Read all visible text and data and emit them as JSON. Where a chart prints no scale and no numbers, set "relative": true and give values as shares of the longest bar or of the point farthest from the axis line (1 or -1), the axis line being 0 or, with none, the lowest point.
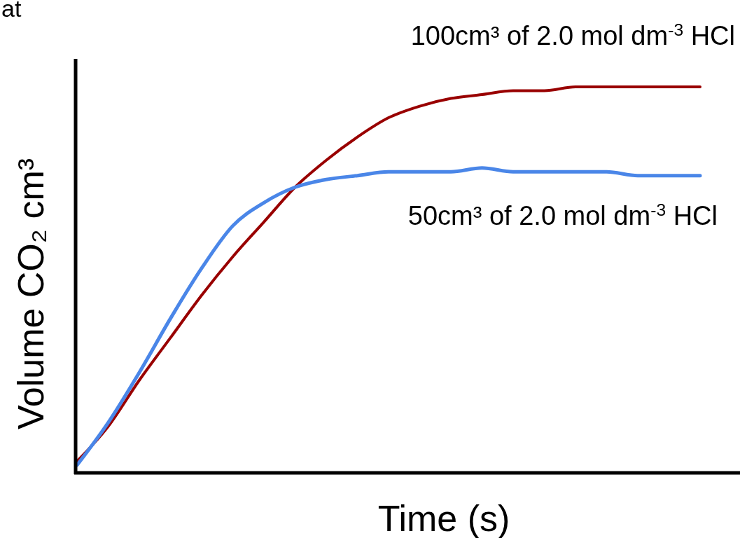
{
  "chart_data": {
    "type": "line",
    "relative": true,
    "ylabel": "Volume CO₂ cm³",
    "xlabel": "Time (s)",
    "annotations": [
      "at"
    ],
    "categories": [
      null,
      null,
      null,
      null,
      null,
      null,
      null,
      null,
      null,
      null,
      null,
      null,
      null,
      null,
      null,
      null,
      null,
      null,
      null,
      null,
      null
    ],
    "series": [
      {
        "name": "100cm³ of 2.0 mol dm$^{-3}$ HCl",
        "color": "#990000",
        "values": [
          0.03,
          0.12,
          0.24,
          0.35,
          0.46,
          0.56,
          0.65,
          0.74,
          0.81,
          0.87,
          0.92,
          0.95,
          0.97,
          0.98,
          0.99,
          0.99,
          1.0,
          1.0,
          1.0,
          1.0,
          1.0
        ]
      },
      {
        "name": "50cm³ of 2.0 mol dm$^{-3}$ HCl",
        "color": "#4a86e8",
        "values": [
          0.02,
          0.13,
          0.26,
          0.4,
          0.53,
          0.64,
          0.7,
          0.74,
          0.76,
          0.77,
          0.78,
          0.78,
          0.78,
          0.79,
          0.78,
          0.78,
          0.78,
          0.78,
          0.77,
          0.77,
          0.77
        ]
      }
    ],
    "legend": false,
    "marker": "none",
    "line_style": "solid"
  }
}
